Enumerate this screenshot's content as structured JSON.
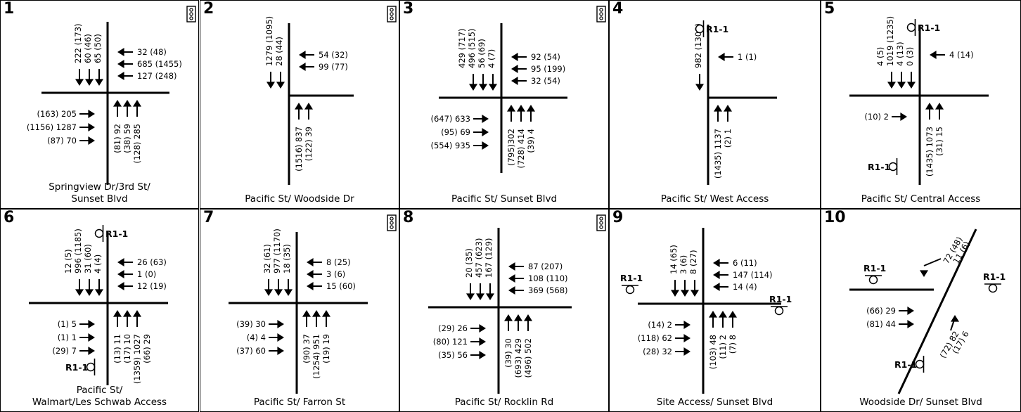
{
  "panels": [
    {
      "num": "1",
      "name": [
        "Springview Dr/3rd St/",
        "Sunset Blvd"
      ],
      "signal": true,
      "south_in": [
        "222 (173)",
        "60 (46)",
        "65 (50)"
      ],
      "west_in": [
        "32 (48)",
        "685 (1455)",
        "127 (248)"
      ],
      "east_in": [
        "(163) 205",
        "(1156) 1287",
        "(87) 70"
      ],
      "north_in": [
        "(81) 92",
        "(38) 59",
        "(128) 285"
      ]
    },
    {
      "num": "2",
      "name": [
        "Pacific St/ Woodside Dr"
      ],
      "signal": true,
      "south_in": [
        "1279 (1095)",
        "28 (44)"
      ],
      "west_in": [
        "54 (32)",
        "99 (77)"
      ],
      "east_in": [],
      "north_in": [
        "(1516) 837",
        "(122) 39"
      ]
    },
    {
      "num": "3",
      "name": [
        "Pacific St/ Sunset Blvd"
      ],
      "signal": true,
      "south_in": [
        "429 (717)",
        "496 (515)",
        "56 (69)",
        "4 (7)"
      ],
      "west_in": [
        "92 (54)",
        "95 (199)",
        "32 (54)"
      ],
      "east_in": [
        "(647) 633",
        "(95) 69",
        "(554) 935"
      ],
      "north_in": [
        "(795)302",
        "(728) 414",
        "(39) 4"
      ]
    },
    {
      "num": "4",
      "name": [
        "Pacific St/ West  Access"
      ],
      "signal": false,
      "south_in": [
        "982 (1308)"
      ],
      "west_in": [
        "1 (1)"
      ],
      "east_in": [],
      "north_in": [
        "(1435) 1137",
        "(2) 1"
      ],
      "signs": [
        "R1-1"
      ]
    },
    {
      "num": "5",
      "name": [
        "Pacific St/ Central Access"
      ],
      "signal": false,
      "south_in": [
        "4 (5)",
        "1019 (1235)",
        "4 (13)",
        "0 (3)"
      ],
      "west_in": [
        "4 (14)"
      ],
      "east_in": [
        "(10) 2"
      ],
      "north_in": [
        "(1435) 1073",
        "(31) 15"
      ],
      "signs": [
        "R1-1",
        "R1-1"
      ]
    },
    {
      "num": "6",
      "name": [
        "Pacific St/",
        "Walmart/Les Schwab Access"
      ],
      "signal": false,
      "south_in": [
        "12 (5)",
        "996 (1185)",
        "31 (60)",
        "4 (4)"
      ],
      "west_in": [
        "26 (63)",
        "1 (0)",
        "12 (19)"
      ],
      "east_in": [
        "(1) 5",
        "(1) 1",
        "(29) 7"
      ],
      "north_in": [
        "(13) 11",
        "(17) 10",
        "(1359) 1027",
        "(66) 29"
      ],
      "signs": [
        "R1-1",
        "R1-1"
      ]
    },
    {
      "num": "7",
      "name": [
        "Pacific St/ Farron St"
      ],
      "signal": true,
      "south_in": [
        "32 (61)",
        "977 (1170)",
        "18 (35)"
      ],
      "west_in": [
        "8 (25)",
        "3 (6)",
        "15 (60)"
      ],
      "east_in": [
        "(39) 30",
        "(4) 4",
        "(37) 60"
      ],
      "north_in": [
        "(90) 37",
        "(1254) 951",
        "(19) 19"
      ]
    },
    {
      "num": "8",
      "name": [
        "Pacific St/ Rocklin Rd"
      ],
      "signal": true,
      "south_in": [
        "20 (35)",
        "457 (623)",
        "167 (129)"
      ],
      "west_in": [
        "87 (207)",
        "108 (110)",
        "369 (568)"
      ],
      "east_in": [
        "(29) 26",
        "(80) 121",
        "(35) 56"
      ],
      "north_in": [
        "(39) 30",
        "(693) 429",
        "(496) 502"
      ]
    },
    {
      "num": "9",
      "name": [
        "Site Access/ Sunset Blvd"
      ],
      "signal": false,
      "south_in": [
        "14 (65)",
        "3 (6)",
        "8 (27)"
      ],
      "west_in": [
        "6 (11)",
        "147 (114)",
        "14 (4)"
      ],
      "east_in": [
        "(14) 2",
        "(118) 62",
        "(28) 32"
      ],
      "north_in": [
        "(103) 48",
        "(11) 2",
        "(7) 8"
      ],
      "signs": [
        "R1-1",
        "R1-1"
      ]
    },
    {
      "num": "10",
      "name": [
        "Woodside Dr/ Sunset Blvd"
      ],
      "signal": false,
      "south_in": [
        "72 (48)",
        "11 (6)"
      ],
      "west_in": [],
      "east_in": [
        "(66) 29",
        "(81) 44"
      ],
      "north_in": [
        "(72) 82",
        "(17) 6"
      ],
      "signs": [
        "R1-1",
        "R1-1",
        "R1-1"
      ]
    }
  ]
}
